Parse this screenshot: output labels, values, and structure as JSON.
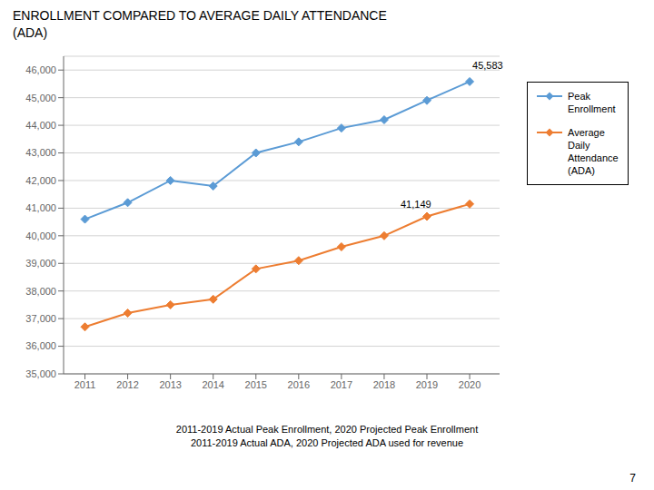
{
  "chart_data": {
    "type": "line",
    "title": "ENROLLMENT COMPARED TO AVERAGE DAILY ATTENDANCE\n(ADA)",
    "subtitle": "2011-2019 Actual Peak Enrollment, 2020 Projected Peak Enrollment\n2011-2019 Actual ADA, 2020 Projected ADA used for revenue",
    "page_number": "7",
    "x": [
      2011,
      2012,
      2013,
      2014,
      2015,
      2016,
      2017,
      2018,
      2019,
      2020
    ],
    "series": [
      {
        "name": "Peak\nEnrollment",
        "color": "#5B9BD5",
        "marker": "diamond",
        "values": [
          40600,
          41200,
          42000,
          41800,
          43000,
          43400,
          43900,
          44200,
          44900,
          45583
        ]
      },
      {
        "name": "Average\nDaily\nAttendance\n(ADA)",
        "color": "#ED7D31",
        "marker": "diamond",
        "values": [
          36700,
          37200,
          37500,
          37700,
          38800,
          39100,
          39600,
          40000,
          40700,
          41149
        ]
      }
    ],
    "xlim": [
      2010.5,
      2020.7
    ],
    "xticks": [
      2011,
      2012,
      2013,
      2014,
      2015,
      2016,
      2017,
      2018,
      2019,
      2020
    ],
    "ylim": [
      35000,
      46500
    ],
    "yticks": [
      {
        "value": 35000,
        "label": "35,000"
      },
      {
        "value": 36000,
        "label": "36,000"
      },
      {
        "value": 37000,
        "label": "37,000"
      },
      {
        "value": 38000,
        "label": "38,000"
      },
      {
        "value": 39000,
        "label": "39,000"
      },
      {
        "value": 40000,
        "label": "40,000"
      },
      {
        "value": 41000,
        "label": "41,000"
      },
      {
        "value": 42000,
        "label": "42,000"
      },
      {
        "value": 43000,
        "label": "43,000"
      },
      {
        "value": 44000,
        "label": "44,000"
      },
      {
        "value": 45000,
        "label": "45,000"
      },
      {
        "value": 46000,
        "label": "46,000"
      }
    ],
    "grid": true,
    "legend": "right",
    "annotations": [
      {
        "text": "45,583",
        "x": 2020,
        "y": 45583
      },
      {
        "text": "41,149",
        "x": 2019,
        "y": 40700
      }
    ]
  }
}
